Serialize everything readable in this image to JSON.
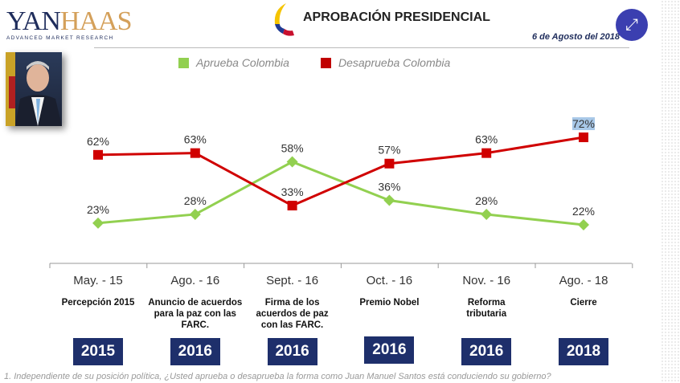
{
  "header": {
    "logo_text": "YANHAAS",
    "logo_subtitle": "ADVANCED MARKET RESEARCH",
    "title": "APROBACIÓN PRESIDENCIAL",
    "date": "6 de Agosto del 2018",
    "expand_icon": "expand-arrows-icon"
  },
  "chart_data": {
    "type": "line",
    "categories": [
      "May. - 15",
      "Ago. - 16",
      "Sept. - 16",
      "Oct. - 16",
      "Nov. - 16",
      "Ago. - 18"
    ],
    "events": [
      "Percepción 2015",
      "Anuncio de acuerdos para la paz con las FARC.",
      "Firma de los acuerdos de paz con las FARC.",
      "Premio Nobel",
      "Reforma tributaria",
      "Cierre"
    ],
    "years": [
      "2015",
      "2016",
      "2016",
      "2016",
      "2016",
      "2018"
    ],
    "series": [
      {
        "name": "Aprueba Colombia",
        "color": "#92d050",
        "marker": "diamond",
        "values": [
          23,
          28,
          58,
          36,
          28,
          22
        ],
        "labels": [
          "23%",
          "28%",
          "58%",
          "36%",
          "28%",
          "22%"
        ]
      },
      {
        "name": "Desaprueba Colombia",
        "color": "#d00000",
        "marker": "square",
        "values": [
          62,
          63,
          33,
          57,
          63,
          72
        ],
        "labels": [
          "62%",
          "63%",
          "33%",
          "57%",
          "63%",
          "72%"
        ]
      }
    ],
    "ylim": [
      0,
      72
    ],
    "grid": false,
    "legend": "top"
  },
  "footnote": "1. Independiente de su posición política, ¿Usted aprueba o desaprueba la forma como Juan Manuel Santos está conduciendo su gobierno?"
}
